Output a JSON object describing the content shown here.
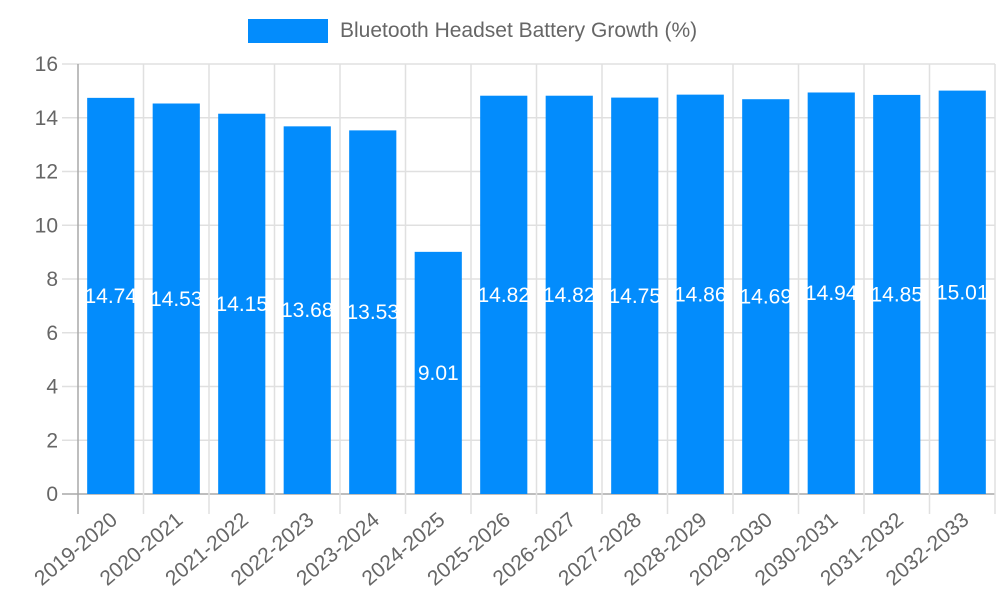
{
  "legend": {
    "label": "Bluetooth Headset Battery Growth (%)",
    "color": "#038cfc"
  },
  "colors": {
    "bar": "#038cfc",
    "grid": "#e0e0e0",
    "axis": "#a8a8a8",
    "tick_text": "#666666",
    "label_text": "#ffffff"
  },
  "chart_data": {
    "type": "bar",
    "title": "",
    "xlabel": "",
    "ylabel": "",
    "ylim": [
      0,
      16
    ],
    "yticks": [
      0,
      2,
      4,
      6,
      8,
      10,
      12,
      14,
      16
    ],
    "grid": true,
    "legend_position": "top",
    "categories": [
      "2019-2020",
      "2020-2021",
      "2021-2022",
      "2022-2023",
      "2023-2024",
      "2024-2025",
      "2025-2026",
      "2026-2027",
      "2027-2028",
      "2028-2029",
      "2029-2030",
      "2030-2031",
      "2031-2032",
      "2032-2033"
    ],
    "series": [
      {
        "name": "Bluetooth Headset Battery Growth (%)",
        "values": [
          14.74,
          14.53,
          14.15,
          13.68,
          13.53,
          9.01,
          14.82,
          14.82,
          14.75,
          14.86,
          14.69,
          14.94,
          14.85,
          15.01
        ]
      }
    ]
  }
}
